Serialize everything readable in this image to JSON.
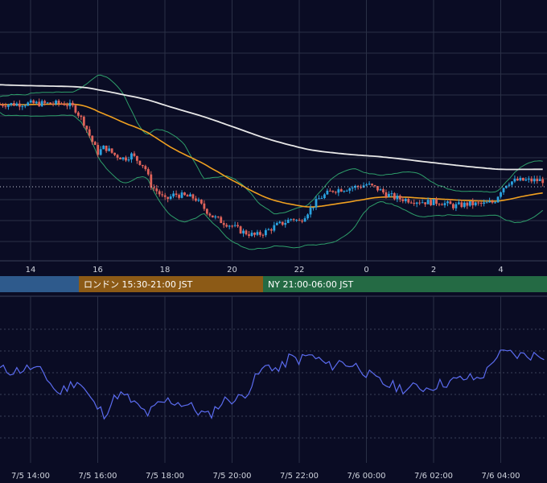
{
  "colors": {
    "background": "#0a0c24",
    "grid": "#2a3046",
    "up": "#2aa3e0",
    "down": "#e0635a",
    "sma_long": "#e8e8e8",
    "ema_short": "#f0a020",
    "bollinger": "#2e9e6a",
    "oscillator": "#5b6cf0",
    "session_tokyo": "#2e5a8c",
    "session_london": "#8c5a16",
    "session_ny": "#246a44"
  },
  "sessions": [
    {
      "label": "",
      "color": "#2e5a8c"
    },
    {
      "label": "ロンドン 15:30-21:00 JST",
      "color": "#8c5a16"
    },
    {
      "label": "NY 21:00-06:00 JST",
      "color": "#246a44"
    }
  ],
  "chart_data": [
    {
      "type": "candlestick",
      "title": "",
      "x_ticks": [
        "14",
        "16",
        "18",
        "20",
        "22",
        "0",
        "2",
        "4"
      ],
      "y_range": [
        0,
        100
      ],
      "grid": true,
      "legend": "none",
      "indicators": [
        "moving average (long)",
        "moving average (short)",
        "bollinger bands"
      ],
      "price_path": [
        [
          0,
          72
        ],
        [
          2,
          71
        ],
        [
          5,
          70
        ],
        [
          8,
          70
        ],
        [
          10,
          72
        ],
        [
          12,
          71
        ],
        [
          14,
          72
        ],
        [
          15,
          72
        ],
        [
          15.3,
          70
        ],
        [
          15.6,
          62
        ],
        [
          15.8,
          54
        ],
        [
          16.0,
          47
        ],
        [
          16.2,
          50
        ],
        [
          16.5,
          46
        ],
        [
          16.8,
          44
        ],
        [
          17.0,
          46
        ],
        [
          17.2,
          43
        ],
        [
          17.4,
          40
        ],
        [
          17.6,
          30
        ],
        [
          17.8,
          27
        ],
        [
          18.0,
          23
        ],
        [
          18.3,
          26
        ],
        [
          18.6,
          25
        ],
        [
          18.9,
          24
        ],
        [
          19.1,
          20
        ],
        [
          19.4,
          15
        ],
        [
          19.7,
          12
        ],
        [
          20.0,
          10
        ],
        [
          20.3,
          7
        ],
        [
          20.5,
          6
        ],
        [
          20.7,
          5
        ],
        [
          21.0,
          7
        ],
        [
          21.3,
          10
        ],
        [
          21.6,
          12
        ],
        [
          21.8,
          14
        ],
        [
          22.0,
          12
        ],
        [
          22.2,
          16
        ],
        [
          22.6,
          24
        ],
        [
          23.0,
          28
        ],
        [
          23.4,
          29
        ],
        [
          23.8,
          30
        ],
        [
          24.0,
          31
        ],
        [
          24.3,
          29
        ],
        [
          24.6,
          26
        ],
        [
          24.9,
          24
        ],
        [
          25.3,
          23
        ],
        [
          25.8,
          22
        ],
        [
          26.2,
          22
        ],
        [
          26.6,
          20
        ],
        [
          27.0,
          21
        ],
        [
          27.5,
          21
        ],
        [
          27.8,
          22
        ],
        [
          28.0,
          28
        ],
        [
          28.2,
          32
        ],
        [
          28.5,
          33
        ]
      ]
    },
    {
      "type": "line",
      "title": "",
      "x_ticks": [
        "7/5 14:00",
        "7/5 16:00",
        "7/5 18:00",
        "7/5 20:00",
        "7/5 22:00",
        "7/6 00:00",
        "7/6 02:00",
        "7/6 04:00"
      ],
      "y_range": [
        0,
        100
      ],
      "grid": true,
      "series": [
        {
          "name": "",
          "points": [
            [
              13.0,
              62
            ],
            [
              13.5,
              60
            ],
            [
              14.0,
              63
            ],
            [
              14.4,
              58
            ],
            [
              14.8,
              40
            ],
            [
              15.1,
              46
            ],
            [
              15.4,
              52
            ],
            [
              15.6,
              44
            ],
            [
              15.9,
              30
            ],
            [
              16.2,
              22
            ],
            [
              16.6,
              40
            ],
            [
              16.9,
              36
            ],
            [
              17.2,
              28
            ],
            [
              17.5,
              22
            ],
            [
              17.8,
              30
            ],
            [
              18.1,
              34
            ],
            [
              18.4,
              32
            ],
            [
              18.7,
              30
            ],
            [
              19.0,
              24
            ],
            [
              19.3,
              20
            ],
            [
              19.6,
              30
            ],
            [
              19.9,
              36
            ],
            [
              20.1,
              34
            ],
            [
              20.3,
              38
            ],
            [
              20.5,
              44
            ],
            [
              20.8,
              58
            ],
            [
              21.1,
              66
            ],
            [
              21.4,
              60
            ],
            [
              21.7,
              72
            ],
            [
              22.0,
              70
            ],
            [
              22.3,
              74
            ],
            [
              22.6,
              70
            ],
            [
              22.9,
              64
            ],
            [
              23.2,
              68
            ],
            [
              23.5,
              66
            ],
            [
              23.8,
              64
            ],
            [
              24.0,
              58
            ],
            [
              24.3,
              52
            ],
            [
              24.6,
              48
            ],
            [
              24.9,
              46
            ],
            [
              25.2,
              44
            ],
            [
              25.5,
              46
            ],
            [
              25.8,
              45
            ],
            [
              26.1,
              48
            ],
            [
              26.4,
              50
            ],
            [
              26.7,
              52
            ],
            [
              27.0,
              54
            ],
            [
              27.3,
              53
            ],
            [
              27.6,
              60
            ],
            [
              27.8,
              72
            ],
            [
              28.0,
              75
            ],
            [
              28.2,
              76
            ],
            [
              28.5,
              74
            ]
          ]
        }
      ]
    }
  ]
}
